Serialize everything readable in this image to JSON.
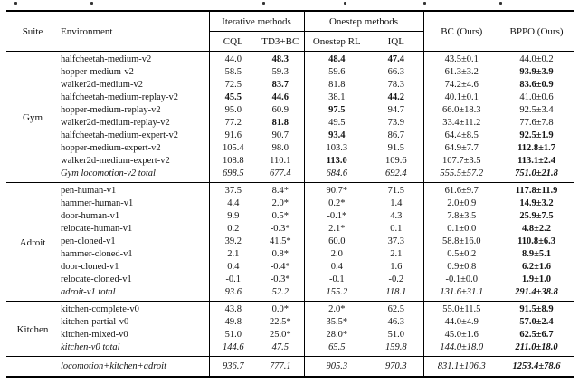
{
  "table": {
    "header": {
      "suite": "Suite",
      "environment": "Environment",
      "group1": "Iterative methods",
      "group2": "Onestep methods",
      "col1": "CQL",
      "col2": "TD3+BC",
      "col3": "Onestep RL",
      "col4": "IQL",
      "col5": "BC (Ours)",
      "col6": "BPPO (Ours)"
    },
    "sections": [
      {
        "suite": "Gym",
        "rows": [
          {
            "env": "halfcheetah-medium-v2",
            "values": [
              "44.0",
              "48.3",
              "48.4",
              "47.4",
              "43.5±0.1",
              "44.0±0.2"
            ],
            "bold": [
              0,
              1,
              1,
              1,
              0,
              0
            ]
          },
          {
            "env": "hopper-medium-v2",
            "values": [
              "58.5",
              "59.3",
              "59.6",
              "66.3",
              "61.3±3.2",
              "93.9±3.9"
            ],
            "bold": [
              0,
              0,
              0,
              0,
              0,
              1
            ]
          },
          {
            "env": "walker2d-medium-v2",
            "values": [
              "72.5",
              "83.7",
              "81.8",
              "78.3",
              "74.2±4.6",
              "83.6±0.9"
            ],
            "bold": [
              0,
              1,
              0,
              0,
              0,
              1
            ]
          },
          {
            "env": "halfcheetah-medium-replay-v2",
            "values": [
              "45.5",
              "44.6",
              "38.1",
              "44.2",
              "40.1±0.1",
              "41.0±0.6"
            ],
            "bold": [
              1,
              1,
              0,
              1,
              0,
              0
            ]
          },
          {
            "env": "hopper-medium-replay-v2",
            "values": [
              "95.0",
              "60.9",
              "97.5",
              "94.7",
              "66.0±18.3",
              "92.5±3.4"
            ],
            "bold": [
              0,
              0,
              1,
              0,
              0,
              0
            ]
          },
          {
            "env": "walker2d-medium-replay-v2",
            "values": [
              "77.2",
              "81.8",
              "49.5",
              "73.9",
              "33.4±11.2",
              "77.6±7.8"
            ],
            "bold": [
              0,
              1,
              0,
              0,
              0,
              0
            ]
          },
          {
            "env": "halfcheetah-medium-expert-v2",
            "values": [
              "91.6",
              "90.7",
              "93.4",
              "86.7",
              "64.4±8.5",
              "92.5±1.9"
            ],
            "bold": [
              0,
              0,
              1,
              0,
              0,
              1
            ]
          },
          {
            "env": "hopper-medium-expert-v2",
            "values": [
              "105.4",
              "98.0",
              "103.3",
              "91.5",
              "64.9±7.7",
              "112.8±1.7"
            ],
            "bold": [
              0,
              0,
              0,
              0,
              0,
              1
            ]
          },
          {
            "env": "walker2d-medium-expert-v2",
            "values": [
              "108.8",
              "110.1",
              "113.0",
              "109.6",
              "107.7±3.5",
              "113.1±2.4"
            ],
            "bold": [
              0,
              0,
              1,
              0,
              0,
              1
            ]
          },
          {
            "env": "Gym locomotion-v2 total",
            "total": true,
            "values": [
              "698.5",
              "677.4",
              "684.6",
              "692.4",
              "555.5±57.2",
              "751.0±21.8"
            ],
            "bold": [
              0,
              0,
              0,
              0,
              0,
              1
            ]
          }
        ]
      },
      {
        "suite": "Adroit",
        "rows": [
          {
            "env": "pen-human-v1",
            "values": [
              "37.5",
              "8.4*",
              "90.7*",
              "71.5",
              "61.6±9.7",
              "117.8±11.9"
            ],
            "bold": [
              0,
              0,
              0,
              0,
              0,
              1
            ]
          },
          {
            "env": "hammer-human-v1",
            "values": [
              "4.4",
              "2.0*",
              "0.2*",
              "1.4",
              "2.0±0.9",
              "14.9±3.2"
            ],
            "bold": [
              0,
              0,
              0,
              0,
              0,
              1
            ]
          },
          {
            "env": "door-human-v1",
            "values": [
              "9.9",
              "0.5*",
              "-0.1*",
              "4.3",
              "7.8±3.5",
              "25.9±7.5"
            ],
            "bold": [
              0,
              0,
              0,
              0,
              0,
              1
            ]
          },
          {
            "env": "relocate-human-v1",
            "values": [
              "0.2",
              "-0.3*",
              "2.1*",
              "0.1",
              "0.1±0.0",
              "4.8±2.2"
            ],
            "bold": [
              0,
              0,
              0,
              0,
              0,
              1
            ]
          },
          {
            "env": "pen-cloned-v1",
            "values": [
              "39.2",
              "41.5*",
              "60.0",
              "37.3",
              "58.8±16.0",
              "110.8±6.3"
            ],
            "bold": [
              0,
              0,
              0,
              0,
              0,
              1
            ]
          },
          {
            "env": "hammer-cloned-v1",
            "values": [
              "2.1",
              "0.8*",
              "2.0",
              "2.1",
              "0.5±0.2",
              "8.9±5.1"
            ],
            "bold": [
              0,
              0,
              0,
              0,
              0,
              1
            ]
          },
          {
            "env": "door-cloned-v1",
            "values": [
              "0.4",
              "-0.4*",
              "0.4",
              "1.6",
              "0.9±0.8",
              "6.2±1.6"
            ],
            "bold": [
              0,
              0,
              0,
              0,
              0,
              1
            ]
          },
          {
            "env": "relocate-cloned-v1",
            "values": [
              "-0.1",
              "-0.3*",
              "-0.1",
              "-0.2",
              "-0.1±0.0",
              "1.9±1.0"
            ],
            "bold": [
              0,
              0,
              0,
              0,
              0,
              1
            ]
          },
          {
            "env": "adroit-v1 total",
            "total": true,
            "values": [
              "93.6",
              "52.2",
              "155.2",
              "118.1",
              "131.6±31.1",
              "291.4±38.8"
            ],
            "bold": [
              0,
              0,
              0,
              0,
              0,
              1
            ]
          }
        ]
      },
      {
        "suite": "Kitchen",
        "rows": [
          {
            "env": "kitchen-complete-v0",
            "values": [
              "43.8",
              "0.0*",
              "2.0*",
              "62.5",
              "55.0±11.5",
              "91.5±8.9"
            ],
            "bold": [
              0,
              0,
              0,
              0,
              0,
              1
            ]
          },
          {
            "env": "kitchen-partial-v0",
            "values": [
              "49.8",
              "22.5*",
              "35.5*",
              "46.3",
              "44.0±4.9",
              "57.0±2.4"
            ],
            "bold": [
              0,
              0,
              0,
              0,
              0,
              1
            ]
          },
          {
            "env": "kitchen-mixed-v0",
            "values": [
              "51.0",
              "25.0*",
              "28.0*",
              "51.0",
              "45.0±1.6",
              "62.5±6.7"
            ],
            "bold": [
              0,
              0,
              0,
              0,
              0,
              1
            ]
          },
          {
            "env": "kitchen-v0 total",
            "total": true,
            "values": [
              "144.6",
              "47.5",
              "65.5",
              "159.8",
              "144.0±18.0",
              "211.0±18.0"
            ],
            "bold": [
              0,
              0,
              0,
              0,
              0,
              1
            ]
          }
        ]
      }
    ],
    "grand_total": {
      "env": "locomotion+kitchen+adroit",
      "total": true,
      "values": [
        "936.7",
        "777.1",
        "905.3",
        "970.3",
        "831.1±106.3",
        "1253.4±78.6"
      ],
      "bold": [
        0,
        0,
        0,
        0,
        0,
        1
      ]
    }
  }
}
